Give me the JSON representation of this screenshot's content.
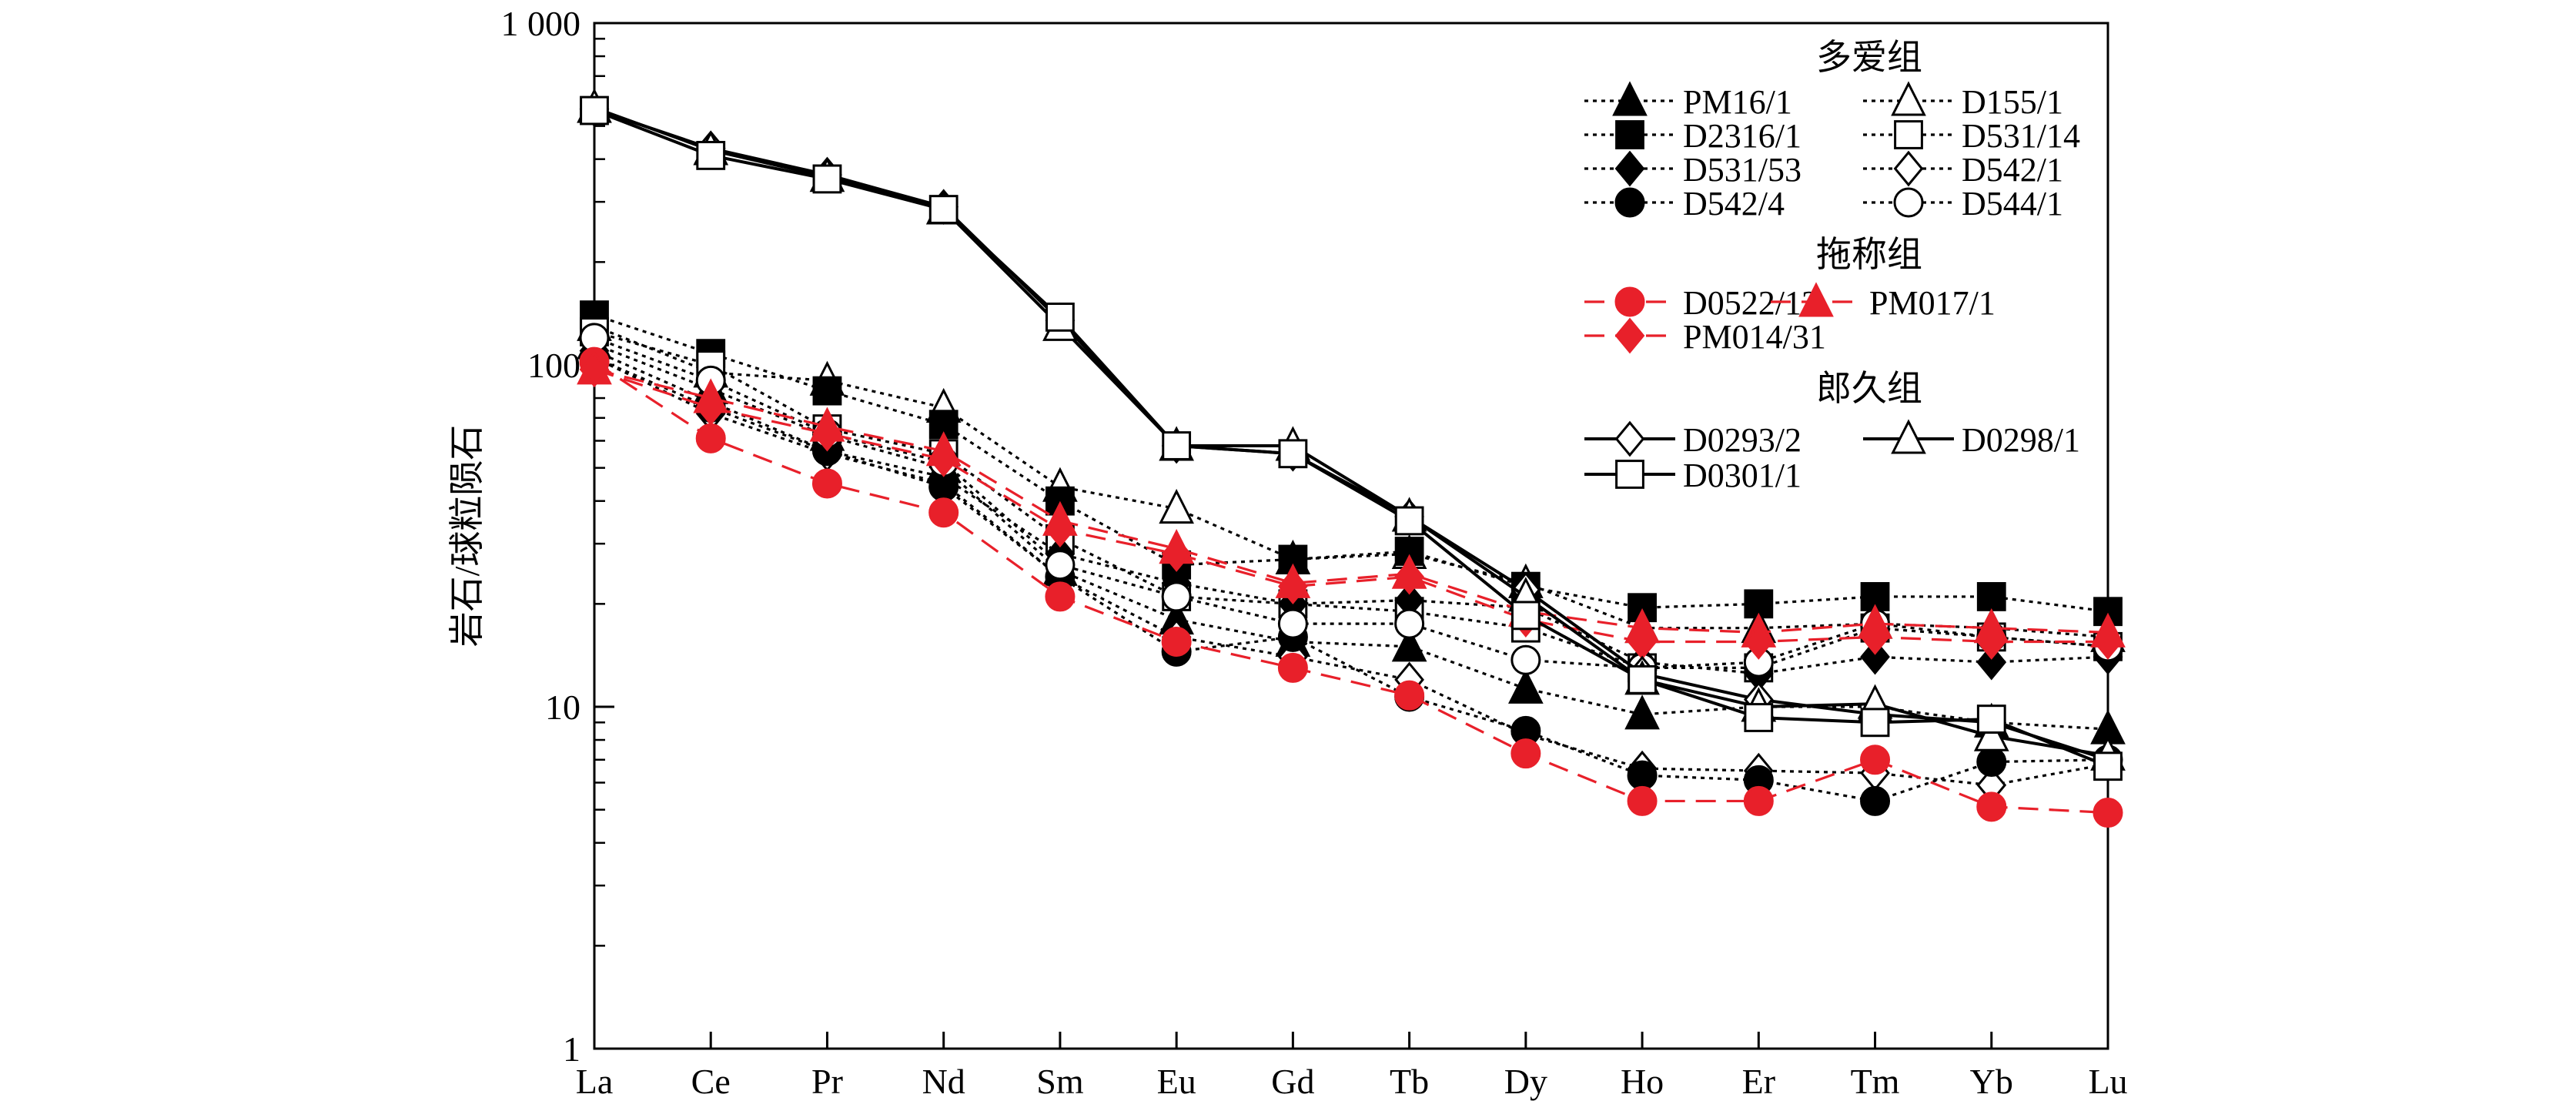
{
  "chart_data": {
    "type": "line",
    "title": "",
    "xlabel": "",
    "ylabel": "岩石/球粒陨石",
    "y_scale": "log",
    "ylim": [
      1,
      1000
    ],
    "y_ticks": [
      {
        "value": 1,
        "label": "1"
      },
      {
        "value": 10,
        "label": "10"
      },
      {
        "value": 100,
        "label": "100"
      },
      {
        "value": 1000,
        "label": "1 000"
      }
    ],
    "categories": [
      "La",
      "Ce",
      "Pr",
      "Nd",
      "Sm",
      "Eu",
      "Gd",
      "Tb",
      "Dy",
      "Ho",
      "Er",
      "Tm",
      "Yb",
      "Lu"
    ],
    "grid": false,
    "legend_position": "top-right",
    "groups": [
      {
        "title": "多爱组",
        "series": [
          {
            "name": "PM16/1",
            "marker": "triangle",
            "filled": true,
            "line": "dotted",
            "color": "#000000",
            "values": [
              115,
              85,
              62,
              50,
              25,
              18,
              15.5,
              15,
              11.3,
              9.5,
              10,
              10,
              9,
              8.6
            ]
          },
          {
            "name": "D155/1",
            "marker": "triangle",
            "filled": false,
            "line": "dotted",
            "color": "#000000",
            "values": [
              130,
              95,
              90,
              75,
              44,
              38,
              27,
              28,
              23,
              17,
              17,
              17.5,
              17,
              16
            ]
          },
          {
            "name": "D2316/1",
            "marker": "square",
            "filled": true,
            "line": "dotted",
            "color": "#000000",
            "values": [
              140,
              108,
              84,
              67,
              40,
              26,
              27,
              28.5,
              22.5,
              19.5,
              20,
              21,
              21,
              19
            ]
          },
          {
            "name": "D531/14",
            "marker": "square",
            "filled": false,
            "line": "dotted",
            "color": "#000000",
            "values": [
              125,
              100,
              65,
              55,
              31,
              21,
              20,
              19,
              17,
              13,
              13,
              17,
              16,
              15
            ]
          },
          {
            "name": "D531/53",
            "marker": "diamond",
            "filled": true,
            "line": "dotted",
            "color": "#000000",
            "values": [
              110,
              78,
              56,
              47,
              28,
              23,
              20,
              20.5,
              19.5,
              13.5,
              12.5,
              14,
              13.5,
              14
            ]
          },
          {
            "name": "D542/1",
            "marker": "diamond",
            "filled": false,
            "line": "dotted",
            "color": "#000000",
            "values": [
              105,
              72,
              55,
              45,
              24,
              16,
              14,
              12,
              8.3,
              6.6,
              6.5,
              6.4,
              5.9,
              6.8
            ]
          },
          {
            "name": "D542/4",
            "marker": "circle",
            "filled": true,
            "line": "dotted",
            "color": "#000000",
            "values": [
              105,
              75,
              56,
              44,
              24,
              14.5,
              16,
              10.7,
              8.5,
              6.3,
              6.1,
              5.3,
              6.9,
              7
            ]
          },
          {
            "name": "D544/1",
            "marker": "circle",
            "filled": false,
            "line": "dotted",
            "color": "#000000",
            "values": [
              120,
              90,
              63,
              52,
              26,
              21,
              17.5,
              17.5,
              13.7,
              13,
              13.5,
              17.5,
              16,
              15
            ]
          }
        ]
      },
      {
        "title": "拖称组",
        "series": [
          {
            "name": "D0522/12",
            "marker": "circle",
            "filled": true,
            "line": "dashed",
            "color": "#e8202a",
            "values": [
              102,
              61,
              45,
              37,
              21,
              15.5,
              13,
              10.8,
              7.3,
              5.3,
              5.3,
              7,
              5.1,
              4.9
            ]
          },
          {
            "name": "PM017/1",
            "marker": "triangle",
            "filled": true,
            "line": "dashed",
            "color": "#e8202a",
            "values": [
              97,
              80,
              66,
              56,
              35,
              29,
              23,
              24.5,
              19,
              17,
              16.5,
              17.5,
              17,
              16.5
            ]
          },
          {
            "name": "PM014/31",
            "marker": "diamond",
            "filled": true,
            "line": "dashed",
            "color": "#e8202a",
            "values": [
              97,
              75,
              63,
              53,
              33,
              28,
              22.5,
              24,
              18,
              15.5,
              15.5,
              16,
              15.5,
              15.5
            ]
          }
        ]
      },
      {
        "title": "郎久组",
        "series": [
          {
            "name": "D0293/2",
            "marker": "diamond",
            "filled": false,
            "line": "solid",
            "color": "#000000",
            "values": [
              560,
              430,
              360,
              290,
              135,
              58,
              55,
              36,
              22,
              12.5,
              10.5,
              9.5,
              9,
              7
            ]
          },
          {
            "name": "D0298/1",
            "marker": "triangle",
            "filled": false,
            "line": "solid",
            "color": "#000000",
            "values": [
              565,
              425,
              355,
              285,
              130,
              58,
              58,
              36,
              21,
              12,
              10,
              10.2,
              8.2,
              7.2
            ]
          },
          {
            "name": "D0301/1",
            "marker": "square",
            "filled": false,
            "line": "solid",
            "color": "#000000",
            "values": [
              555,
              410,
              350,
              285,
              138,
              58,
              55,
              35,
              18.5,
              12,
              9.3,
              9,
              9.2,
              6.7
            ]
          }
        ]
      }
    ]
  }
}
